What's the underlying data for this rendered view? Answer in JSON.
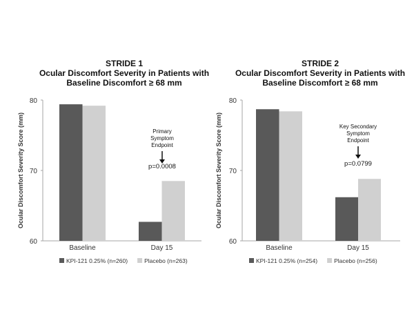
{
  "colors": {
    "kpi": "#595959",
    "placebo": "#d0d0d0",
    "axis": "#a6a6a6",
    "text": "#333333"
  },
  "chart_data": [
    {
      "type": "bar",
      "title": "STRIDE 1",
      "subtitle_lines": [
        "Ocular Discomfort Severity in Patients with",
        "Baseline Discomfort ≥ 68 mm"
      ],
      "ylabel": "Ocular Discomfort Severity Score (mm)",
      "ylim": [
        60,
        80
      ],
      "yticks": [
        60,
        70,
        80
      ],
      "categories": [
        "Baseline",
        "Day 15"
      ],
      "series": [
        {
          "name": "KPI-121 0.25% (n=260)",
          "color": "#595959",
          "values": [
            79.4,
            62.7
          ]
        },
        {
          "name": "Placebo (n=263)",
          "color": "#d0d0d0",
          "values": [
            79.2,
            68.5
          ]
        }
      ],
      "annotation": {
        "lines": [
          "Primary",
          "Symptom",
          "Endpoint"
        ],
        "pvalue": "p=0.0008"
      },
      "legend_position": "bottom",
      "grid": false
    },
    {
      "type": "bar",
      "title": "STRIDE 2",
      "subtitle_lines": [
        "Ocular Discomfort Severity in Patients with",
        "Baseline Discomfort ≥ 68 mm"
      ],
      "ylabel": "Ocular Discomfort Severity Score (mm)",
      "ylim": [
        60,
        80
      ],
      "yticks": [
        60,
        70,
        80
      ],
      "categories": [
        "Baseline",
        "Day 15"
      ],
      "series": [
        {
          "name": "KPI-121 0.25% (n=254)",
          "color": "#595959",
          "values": [
            78.7,
            66.2
          ]
        },
        {
          "name": "Placebo (n=256)",
          "color": "#d0d0d0",
          "values": [
            78.4,
            68.8
          ]
        }
      ],
      "annotation": {
        "lines": [
          "Key Secondary",
          "Symptom",
          "Endpoint"
        ],
        "pvalue": "p=0.0799"
      },
      "legend_position": "bottom",
      "grid": false
    }
  ]
}
